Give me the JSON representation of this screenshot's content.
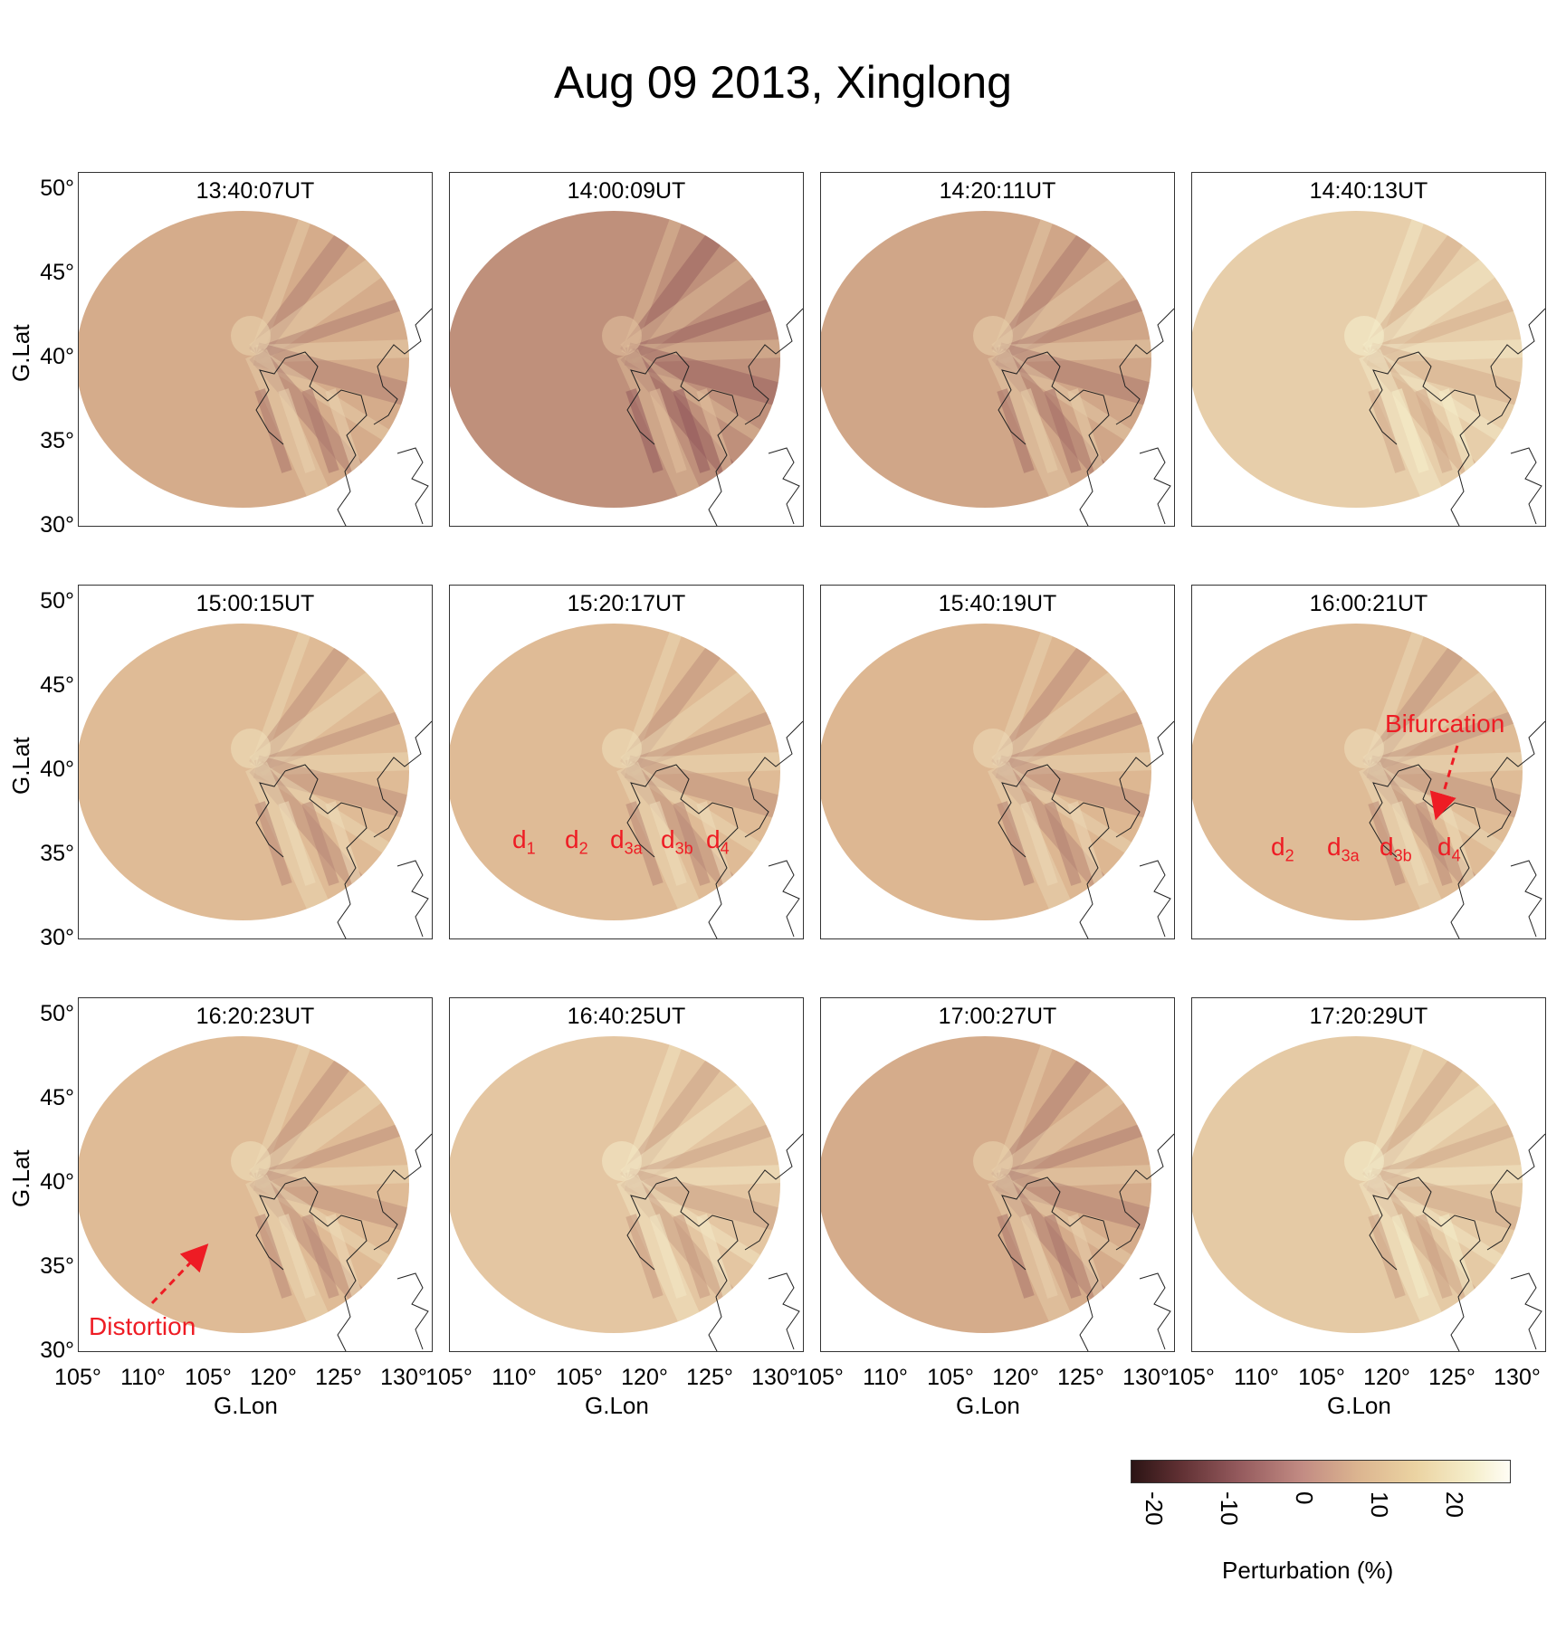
{
  "title": "Aug 09 2013, Xinglong",
  "panels": [
    {
      "time": "13:40:07UT",
      "level": 0.45
    },
    {
      "time": "14:00:09UT",
      "level": 0.3
    },
    {
      "time": "14:20:11UT",
      "level": 0.42
    },
    {
      "time": "14:40:13UT",
      "level": 0.72
    },
    {
      "time": "15:00:15UT",
      "level": 0.55
    },
    {
      "time": "15:20:17UT",
      "level": 0.55
    },
    {
      "time": "15:40:19UT",
      "level": 0.52
    },
    {
      "time": "16:00:21UT",
      "level": 0.56
    },
    {
      "time": "16:20:23UT",
      "level": 0.55
    },
    {
      "time": "16:40:25UT",
      "level": 0.65
    },
    {
      "time": "17:00:27UT",
      "level": 0.45
    },
    {
      "time": "17:20:29UT",
      "level": 0.68
    }
  ],
  "y_ticks": [
    "50°",
    "45°",
    "40°",
    "35°",
    "30°"
  ],
  "x_ticks": [
    "105°",
    "110°",
    "105°",
    "120°",
    "125°",
    "130°"
  ],
  "y_axis_label": "G.Lat",
  "x_axis_label": "G.Lon",
  "annotations": {
    "panel6": [
      "d1",
      "d2",
      "d3a",
      "d3b",
      "d4"
    ],
    "panel8": [
      "d2",
      "d3a",
      "d3b",
      "d4"
    ],
    "bifurcation": "Bifurcation",
    "distortion": "Distortion"
  },
  "colorbar": {
    "label": "Perturbation (%)",
    "ticks": [
      "-20",
      "-10",
      "0",
      "10",
      "20"
    ],
    "colors": [
      "#2b1414",
      "#93595c",
      "#dcb590",
      "#f5eecb",
      "#fffdf4"
    ]
  }
}
